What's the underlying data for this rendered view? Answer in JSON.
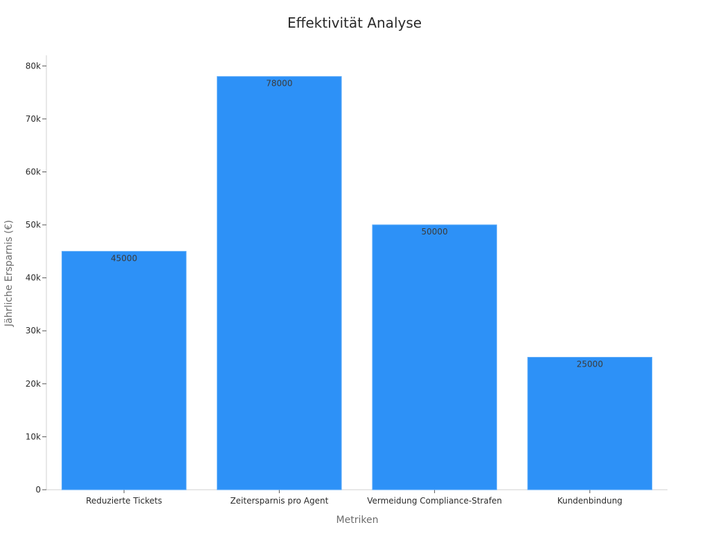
{
  "chart_data": {
    "type": "bar",
    "title": "Effektivität Analyse",
    "xlabel": "Metriken",
    "ylabel": "Jährliche Ersparnis (€)",
    "categories": [
      "Reduzierte Tickets",
      "Zeitersparnis pro Agent",
      "Vermeidung Compliance-Strafen",
      "Kundenbindung"
    ],
    "values": [
      45000,
      78000,
      50000,
      25000
    ],
    "data_labels": [
      "45000",
      "78000",
      "50000",
      "25000"
    ],
    "ylim": [
      0,
      82000
    ],
    "yticks": [
      0,
      10000,
      20000,
      30000,
      40000,
      50000,
      60000,
      70000,
      80000
    ],
    "ytick_labels": [
      "0",
      "10k",
      "20k",
      "30k",
      "40k",
      "50k",
      "60k",
      "70k",
      "80k"
    ],
    "grid": false,
    "colors": {
      "bar": "#2d91f7",
      "bar_edge": "#5aaaf9",
      "axis": "#d0d0d0",
      "tick": "#555555"
    }
  }
}
